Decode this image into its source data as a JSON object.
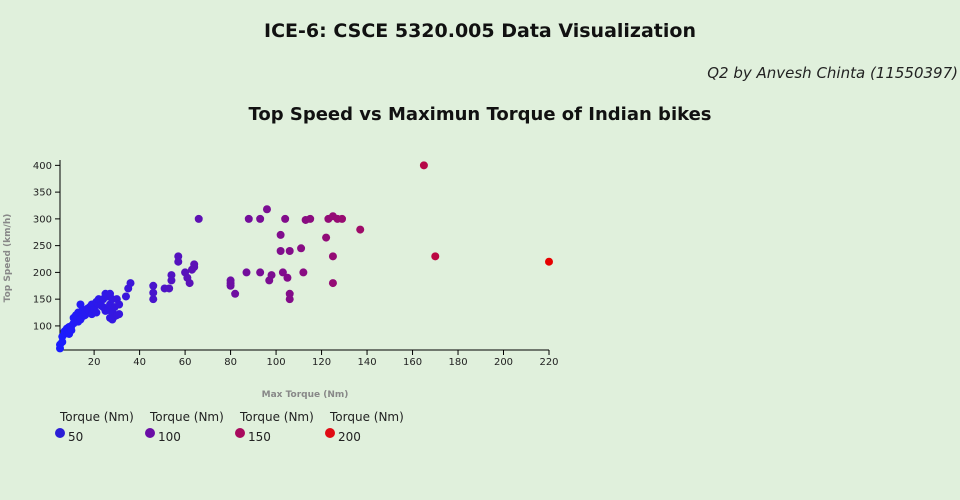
{
  "header": {
    "title": "ICE-6: CSCE 5320.005 Data Visualization",
    "subtitle": "Q2 by Anvesh Chinta (11550397)"
  },
  "chart_data": {
    "type": "scatter",
    "title": "Top Speed vs Maximun Torque of Indian bikes",
    "xlabel": "Max Torque (Nm)",
    "ylabel": "Top Speed (km/h)",
    "xlim": [
      5,
      220
    ],
    "ylim": [
      55,
      410
    ],
    "xticks": [
      20,
      40,
      60,
      80,
      100,
      120,
      140,
      160,
      180,
      200,
      220
    ],
    "yticks": [
      100,
      150,
      200,
      250,
      300,
      350,
      400
    ],
    "grid": false,
    "legend_title": "Torque (Nm)",
    "legend": [
      {
        "label": "50",
        "color": "#2b1ed6"
      },
      {
        "label": "100",
        "color": "#6a0ea6"
      },
      {
        "label": "150",
        "color": "#a80a5e"
      },
      {
        "label": "200",
        "color": "#e00b14"
      }
    ],
    "color_scale": {
      "min": 5,
      "max": 220,
      "colors": [
        "#1a1cff",
        "#6a0ea6",
        "#a80a5e",
        "#e60000"
      ]
    },
    "points": [
      [
        5,
        58
      ],
      [
        5,
        65
      ],
      [
        6,
        70
      ],
      [
        6,
        80
      ],
      [
        7,
        85
      ],
      [
        7,
        90
      ],
      [
        8,
        88
      ],
      [
        8,
        95
      ],
      [
        9,
        85
      ],
      [
        9,
        98
      ],
      [
        10,
        100
      ],
      [
        10,
        92
      ],
      [
        11,
        105
      ],
      [
        11,
        115
      ],
      [
        12,
        110
      ],
      [
        12,
        120
      ],
      [
        13,
        108
      ],
      [
        13,
        125
      ],
      [
        14,
        140
      ],
      [
        14,
        112
      ],
      [
        15,
        118
      ],
      [
        15,
        130
      ],
      [
        16,
        125
      ],
      [
        16,
        120
      ],
      [
        17,
        132
      ],
      [
        18,
        135
      ],
      [
        18,
        128
      ],
      [
        19,
        140
      ],
      [
        19,
        122
      ],
      [
        20,
        130
      ],
      [
        21,
        145
      ],
      [
        21,
        125
      ],
      [
        22,
        140
      ],
      [
        22,
        150
      ],
      [
        23,
        138
      ],
      [
        24,
        135
      ],
      [
        24,
        150
      ],
      [
        25,
        128
      ],
      [
        25,
        160
      ],
      [
        26,
        130
      ],
      [
        26,
        155
      ],
      [
        27,
        115
      ],
      [
        27,
        140
      ],
      [
        27,
        160
      ],
      [
        28,
        112
      ],
      [
        28,
        125
      ],
      [
        28,
        150
      ],
      [
        29,
        135
      ],
      [
        29,
        118
      ],
      [
        30,
        150
      ],
      [
        30,
        120
      ],
      [
        31,
        140
      ],
      [
        31,
        122
      ],
      [
        34,
        155
      ],
      [
        35,
        170
      ],
      [
        36,
        180
      ],
      [
        46,
        150
      ],
      [
        46,
        162
      ],
      [
        46,
        175
      ],
      [
        51,
        170
      ],
      [
        53,
        170
      ],
      [
        54,
        185
      ],
      [
        54,
        195
      ],
      [
        57,
        220
      ],
      [
        57,
        230
      ],
      [
        60,
        200
      ],
      [
        61,
        190
      ],
      [
        62,
        180
      ],
      [
        63,
        205
      ],
      [
        64,
        210
      ],
      [
        64,
        215
      ],
      [
        66,
        300
      ],
      [
        80,
        180
      ],
      [
        80,
        185
      ],
      [
        80,
        175
      ],
      [
        82,
        160
      ],
      [
        87,
        200
      ],
      [
        88,
        300
      ],
      [
        93,
        200
      ],
      [
        93,
        300
      ],
      [
        96,
        318
      ],
      [
        97,
        185
      ],
      [
        98,
        195
      ],
      [
        102,
        270
      ],
      [
        102,
        240
      ],
      [
        103,
        200
      ],
      [
        104,
        300
      ],
      [
        105,
        190
      ],
      [
        106,
        160
      ],
      [
        106,
        150
      ],
      [
        106,
        240
      ],
      [
        111,
        245
      ],
      [
        112,
        200
      ],
      [
        113,
        298
      ],
      [
        115,
        300
      ],
      [
        122,
        265
      ],
      [
        123,
        300
      ],
      [
        125,
        180
      ],
      [
        125,
        305
      ],
      [
        125,
        230
      ],
      [
        127,
        300
      ],
      [
        129,
        300
      ],
      [
        137,
        280
      ],
      [
        165,
        400
      ],
      [
        170,
        230
      ],
      [
        220,
        220
      ]
    ]
  }
}
